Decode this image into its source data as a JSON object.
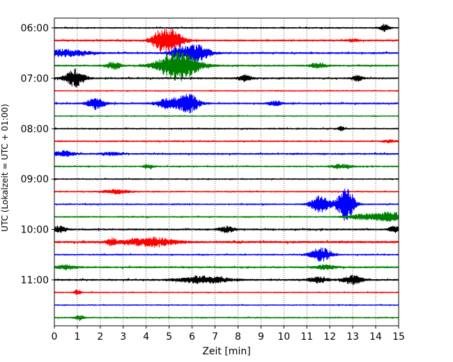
{
  "chart_data": {
    "type": "line",
    "title": "",
    "xlabel": "Zeit  [min]",
    "ylabel": "UTC (Lokalzeit = UTC + 01:00)",
    "xlim": [
      0,
      15
    ],
    "x_ticks": [
      0,
      1,
      2,
      3,
      4,
      5,
      6,
      7,
      8,
      9,
      10,
      11,
      12,
      13,
      14,
      15
    ],
    "y_tick_labels": [
      "06:00",
      "07:00",
      "08:00",
      "09:00",
      "10:00",
      "11:00"
    ],
    "grid": "vertical dotted",
    "legend": "none",
    "colors": [
      "#000000",
      "#ff0000",
      "#0000ff",
      "#008000"
    ],
    "trace_interval_min": 15,
    "traces": [
      {
        "start": "06:00",
        "color": "#000000",
        "noise": 0.8,
        "events": [
          {
            "t": 14.4,
            "amp": 5,
            "dur": 0.3
          }
        ]
      },
      {
        "start": "06:15",
        "color": "#ff0000",
        "noise": 1.0,
        "events": [
          {
            "t": 5.0,
            "amp": 18,
            "dur": 0.8
          },
          {
            "t": 4.5,
            "amp": 5,
            "dur": 0.4
          },
          {
            "t": 13.0,
            "amp": 2,
            "dur": 0.3
          }
        ]
      },
      {
        "start": "06:30",
        "color": "#0000ff",
        "noise": 1.0,
        "events": [
          {
            "t": 0.4,
            "amp": 5,
            "dur": 1.5
          },
          {
            "t": 5.4,
            "amp": 8,
            "dur": 0.5
          },
          {
            "t": 6.2,
            "amp": 12,
            "dur": 0.8
          }
        ]
      },
      {
        "start": "06:45",
        "color": "#008000",
        "noise": 1.0,
        "events": [
          {
            "t": 2.6,
            "amp": 5,
            "dur": 0.4
          },
          {
            "t": 5.4,
            "amp": 22,
            "dur": 1.2
          },
          {
            "t": 11.5,
            "amp": 3,
            "dur": 0.5
          }
        ]
      },
      {
        "start": "07:00",
        "color": "#000000",
        "noise": 1.0,
        "events": [
          {
            "t": 0.9,
            "amp": 12,
            "dur": 0.6
          },
          {
            "t": 8.3,
            "amp": 5,
            "dur": 0.4
          },
          {
            "t": 13.2,
            "amp": 4,
            "dur": 0.3
          }
        ]
      },
      {
        "start": "07:15",
        "color": "#ff0000",
        "noise": 0.6,
        "events": []
      },
      {
        "start": "07:30",
        "color": "#0000ff",
        "noise": 1.0,
        "events": [
          {
            "t": 1.8,
            "amp": 8,
            "dur": 0.5
          },
          {
            "t": 5.1,
            "amp": 9,
            "dur": 0.8
          },
          {
            "t": 5.9,
            "amp": 12,
            "dur": 0.6
          },
          {
            "t": 9.6,
            "amp": 3,
            "dur": 0.4
          }
        ]
      },
      {
        "start": "07:45",
        "color": "#008000",
        "noise": 0.6,
        "events": []
      },
      {
        "start": "08:00",
        "color": "#000000",
        "noise": 0.8,
        "events": [
          {
            "t": 12.5,
            "amp": 3,
            "dur": 0.2
          }
        ]
      },
      {
        "start": "08:15",
        "color": "#ff0000",
        "noise": 0.8,
        "events": [
          {
            "t": 14.6,
            "amp": 2,
            "dur": 0.4
          }
        ]
      },
      {
        "start": "08:30",
        "color": "#0000ff",
        "noise": 1.0,
        "events": [
          {
            "t": 0.4,
            "amp": 4,
            "dur": 0.6
          },
          {
            "t": 2.5,
            "amp": 2,
            "dur": 0.6
          }
        ]
      },
      {
        "start": "08:45",
        "color": "#008000",
        "noise": 0.8,
        "events": [
          {
            "t": 4.1,
            "amp": 3,
            "dur": 0.3
          },
          {
            "t": 12.5,
            "amp": 3,
            "dur": 0.6
          }
        ]
      },
      {
        "start": "09:00",
        "color": "#000000",
        "noise": 0.7,
        "events": []
      },
      {
        "start": "09:15",
        "color": "#ff0000",
        "noise": 0.7,
        "events": [
          {
            "t": 2.7,
            "amp": 3,
            "dur": 0.8
          }
        ]
      },
      {
        "start": "09:30",
        "color": "#0000ff",
        "noise": 0.8,
        "events": [
          {
            "t": 11.6,
            "amp": 12,
            "dur": 0.6
          },
          {
            "t": 12.7,
            "amp": 26,
            "dur": 0.5
          }
        ]
      },
      {
        "start": "09:45",
        "color": "#008000",
        "noise": 0.8,
        "events": [
          {
            "t": 13.5,
            "amp": 4,
            "dur": 1.0
          },
          {
            "t": 14.6,
            "amp": 7,
            "dur": 0.8
          }
        ]
      },
      {
        "start": "10:00",
        "color": "#000000",
        "noise": 1.0,
        "events": [
          {
            "t": 0.2,
            "amp": 5,
            "dur": 0.4
          },
          {
            "t": 7.5,
            "amp": 4,
            "dur": 0.5
          },
          {
            "t": 14.8,
            "amp": 5,
            "dur": 0.3
          }
        ]
      },
      {
        "start": "10:15",
        "color": "#ff0000",
        "noise": 1.3,
        "events": [
          {
            "t": 4.2,
            "amp": 6,
            "dur": 1.5
          },
          {
            "t": 2.5,
            "amp": 5,
            "dur": 0.3
          }
        ]
      },
      {
        "start": "10:30",
        "color": "#0000ff",
        "noise": 0.8,
        "events": [
          {
            "t": 11.6,
            "amp": 10,
            "dur": 0.6
          }
        ]
      },
      {
        "start": "10:45",
        "color": "#008000",
        "noise": 1.0,
        "events": [
          {
            "t": 0.5,
            "amp": 3,
            "dur": 0.6
          },
          {
            "t": 11.8,
            "amp": 3,
            "dur": 0.6
          }
        ]
      },
      {
        "start": "11:00",
        "color": "#000000",
        "noise": 1.0,
        "events": [
          {
            "t": 6.5,
            "amp": 5,
            "dur": 1.5
          },
          {
            "t": 11.5,
            "amp": 4,
            "dur": 0.6
          },
          {
            "t": 13.0,
            "amp": 6,
            "dur": 0.6
          }
        ]
      },
      {
        "start": "11:15",
        "color": "#ff0000",
        "noise": 0.6,
        "events": [
          {
            "t": 1.0,
            "amp": 4,
            "dur": 0.2
          }
        ]
      },
      {
        "start": "11:30",
        "color": "#0000ff",
        "noise": 0.6,
        "events": []
      },
      {
        "start": "11:45",
        "color": "#008000",
        "noise": 0.7,
        "events": [
          {
            "t": 1.1,
            "amp": 3,
            "dur": 0.3
          }
        ]
      }
    ]
  }
}
